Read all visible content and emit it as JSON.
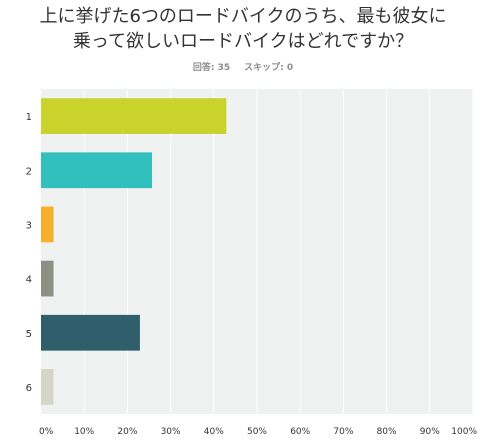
{
  "question": {
    "line1": "上に挙げた6つのロードバイクのうち、最も彼女に",
    "line2": "乗って欲しいロードバイクはどれですか？"
  },
  "stats": {
    "answered_label": "回答: 35",
    "skipped_label": "スキップ: 0"
  },
  "colors": {
    "plot_background": "#f0f1f1",
    "grid": "#ffffff"
  },
  "chart_data": {
    "type": "bar",
    "orientation": "horizontal",
    "categories": [
      "1",
      "2",
      "3",
      "4",
      "5",
      "6"
    ],
    "values": [
      42.9,
      25.7,
      2.9,
      2.9,
      22.9,
      2.9
    ],
    "colors": [
      "#cad32b",
      "#32c0be",
      "#f6b02c",
      "#8b9082",
      "#2e5f6b",
      "#d6d5c8"
    ],
    "xlim": [
      0,
      100
    ],
    "xticks": [
      "0%",
      "10%",
      "20%",
      "30%",
      "40%",
      "50%",
      "60%",
      "70%",
      "80%",
      "90%",
      "100%"
    ],
    "grid": true
  }
}
